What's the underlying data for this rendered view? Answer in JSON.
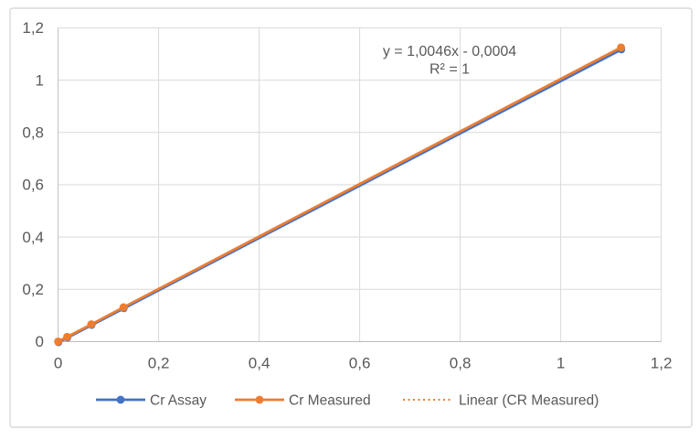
{
  "window": {
    "background": "#ffffff"
  },
  "chart": {
    "frame_border_color": "#d9d9d9",
    "frame_background": "#ffffff"
  },
  "chart_data": {
    "type": "line",
    "title": "",
    "xlabel": "",
    "ylabel": "",
    "x": [
      0,
      0.018,
      0.066,
      0.13,
      1.12
    ],
    "series": [
      {
        "name": "Cr Assay",
        "color": "#4472c4",
        "marker": "circle",
        "values": [
          0,
          0.018,
          0.066,
          0.13,
          1.12
        ]
      },
      {
        "name": "Cr Measured",
        "color": "#ed7d31",
        "marker": "circle",
        "values": [
          0,
          0.018,
          0.066,
          0.131,
          1.125
        ]
      }
    ],
    "trendline": {
      "name": "Linear (CR Measured)",
      "color": "#ed7d31",
      "style": "dotted",
      "slope": 1.0046,
      "intercept": -0.0004,
      "equation_label": "y = 1,0046x - 0,0004",
      "r_squared_label": "R² = 1"
    },
    "annotation": {
      "lines": [
        "y = 1,0046x - 0,0004",
        "R² = 1"
      ],
      "color": "#595959"
    },
    "xlim": [
      0,
      1.2
    ],
    "ylim": [
      0,
      1.2
    ],
    "x_ticks": [
      0,
      0.2,
      0.4,
      0.6,
      0.8,
      1,
      1.2
    ],
    "y_ticks": [
      0,
      0.2,
      0.4,
      0.6,
      0.8,
      1,
      1.2
    ],
    "x_tick_labels": [
      "0",
      "0,2",
      "0,4",
      "0,6",
      "0,8",
      "1",
      "1,2"
    ],
    "y_tick_labels": [
      "0",
      "0,2",
      "0,4",
      "0,6",
      "0,8",
      "1",
      "1,2"
    ],
    "grid": true,
    "gridline_color": "#d9d9d9",
    "axis_line_color": "#bfbfbf",
    "tick_label_color": "#595959",
    "legend": {
      "position": "bottom",
      "text_color": "#595959",
      "entries": [
        {
          "label": "Cr Assay",
          "color": "#4472c4",
          "swatch": "line-marker"
        },
        {
          "label": "Cr Measured",
          "color": "#ed7d31",
          "swatch": "line-marker"
        },
        {
          "label": "Linear (CR Measured)",
          "color": "#ed7d31",
          "swatch": "dotted-line"
        }
      ]
    }
  }
}
